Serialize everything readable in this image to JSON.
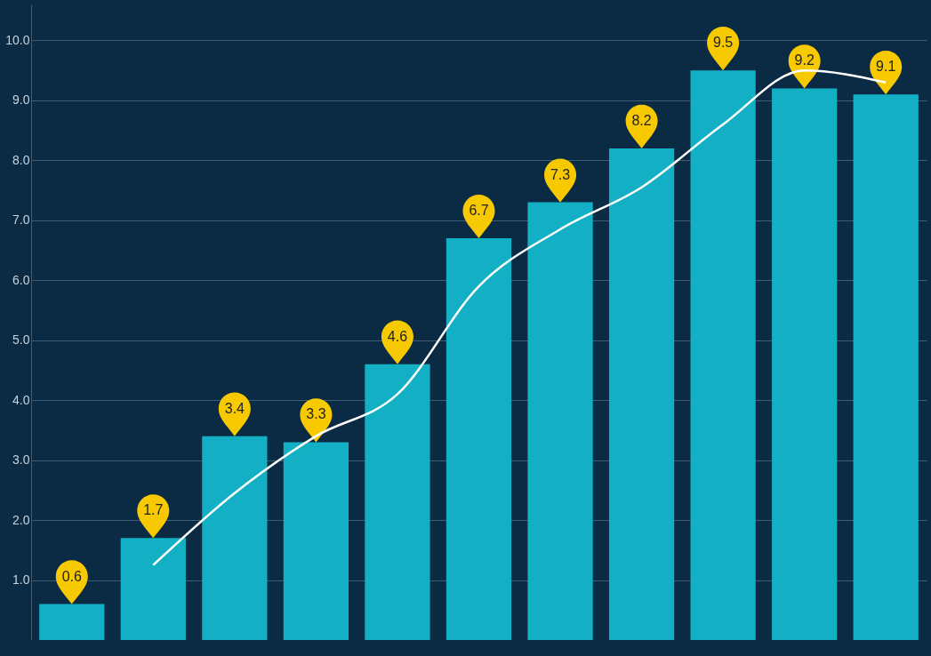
{
  "chart_data": {
    "type": "bar",
    "categories": [
      null,
      null,
      null,
      null,
      null,
      null,
      null,
      null,
      null,
      null,
      null
    ],
    "series": [
      {
        "color": "#13b0c5",
        "values": [
          0.6,
          1.7,
          3.4,
          3.3,
          4.6,
          6.7,
          7.3,
          8.2,
          9.5,
          9.2,
          9.1
        ],
        "value_labels": [
          "0.6",
          "1.7",
          "3.4",
          "3.3",
          "4.6",
          "6.7",
          "7.3",
          "8.2",
          "9.5",
          "9.2",
          "9.1"
        ]
      },
      {
        "type": "line",
        "color": "#ffffff",
        "values": [
          null,
          1.25,
          2.45,
          3.4,
          4.1,
          5.9,
          6.85,
          7.55,
          8.6,
          9.5,
          9.3
        ]
      }
    ],
    "ylim": [
      0,
      10.6
    ],
    "yticks": [
      {
        "value": 1,
        "label": "1.0"
      },
      {
        "value": 2,
        "label": "2.0"
      },
      {
        "value": 3,
        "label": "3.0"
      },
      {
        "value": 4,
        "label": "4.0"
      },
      {
        "value": 5,
        "label": "5.0"
      },
      {
        "value": 6,
        "label": "6.0"
      },
      {
        "value": 7,
        "label": "7.0"
      },
      {
        "value": 8,
        "label": "8.0"
      },
      {
        "value": 9,
        "label": "9.0"
      },
      {
        "value": 10,
        "label": "10.0"
      }
    ],
    "grid": "y",
    "tick_labels": "y"
  }
}
